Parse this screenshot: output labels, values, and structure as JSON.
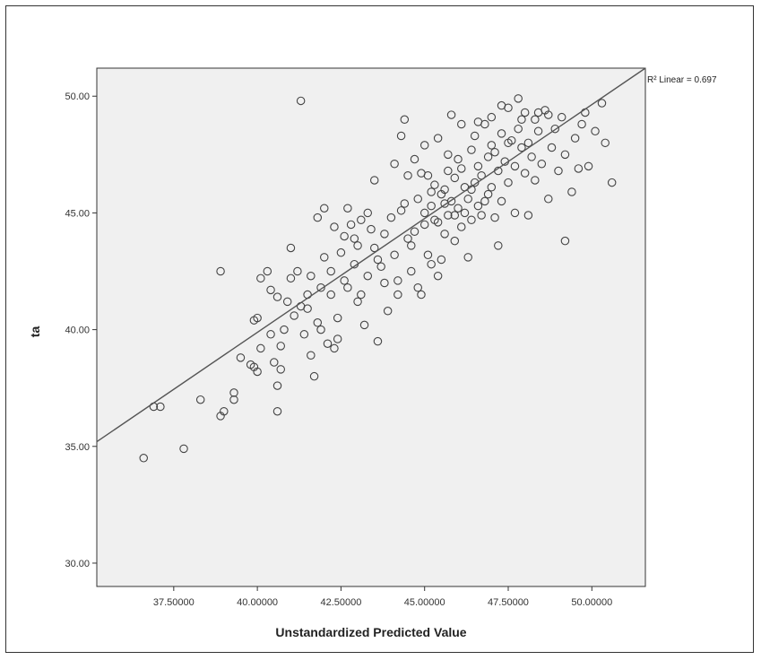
{
  "chart_data": {
    "type": "scatter",
    "title": "",
    "xlabel": "Unstandardized Predicted Value",
    "ylabel": "ta",
    "xlim": [
      35.2,
      51.6
    ],
    "ylim": [
      29.0,
      51.2
    ],
    "x_ticks": [
      37.5,
      40.0,
      42.5,
      45.0,
      47.5,
      50.0
    ],
    "x_tick_labels": [
      "37.50000",
      "40.00000",
      "42.50000",
      "45.00000",
      "47.50000",
      "50.00000"
    ],
    "y_ticks": [
      30,
      35,
      40,
      45,
      50
    ],
    "y_tick_labels": [
      "30.00",
      "35.00",
      "40.00",
      "45.00",
      "50.00"
    ],
    "grid": false,
    "annotation": "R² Linear = 0.697",
    "fit_line": {
      "type": "linear",
      "x": [
        35.2,
        51.6
      ],
      "y": [
        35.2,
        51.2
      ]
    },
    "colors": {
      "plot_bg": "#f0f0f0",
      "marker": "#444444",
      "line": "#555555"
    },
    "points": [
      [
        36.6,
        34.5
      ],
      [
        36.9,
        36.7
      ],
      [
        37.1,
        36.7
      ],
      [
        37.8,
        34.9
      ],
      [
        38.3,
        37.0
      ],
      [
        38.9,
        36.3
      ],
      [
        39.0,
        36.5
      ],
      [
        38.9,
        42.5
      ],
      [
        39.3,
        37.3
      ],
      [
        39.3,
        37.0
      ],
      [
        39.5,
        38.8
      ],
      [
        39.8,
        38.5
      ],
      [
        39.9,
        38.4
      ],
      [
        40.0,
        38.2
      ],
      [
        40.0,
        40.5
      ],
      [
        40.1,
        39.2
      ],
      [
        40.1,
        42.2
      ],
      [
        40.3,
        42.5
      ],
      [
        40.4,
        39.8
      ],
      [
        40.5,
        38.6
      ],
      [
        40.6,
        41.4
      ],
      [
        40.6,
        36.5
      ],
      [
        40.6,
        37.6
      ],
      [
        40.7,
        38.3
      ],
      [
        40.7,
        39.3
      ],
      [
        40.8,
        40.0
      ],
      [
        40.9,
        41.2
      ],
      [
        41.0,
        43.5
      ],
      [
        41.1,
        40.6
      ],
      [
        41.2,
        42.5
      ],
      [
        41.3,
        41.0
      ],
      [
        41.3,
        49.8
      ],
      [
        41.4,
        39.8
      ],
      [
        41.5,
        41.5
      ],
      [
        41.6,
        42.3
      ],
      [
        41.6,
        38.9
      ],
      [
        41.7,
        38.0
      ],
      [
        41.8,
        40.3
      ],
      [
        41.9,
        41.8
      ],
      [
        41.8,
        44.8
      ],
      [
        42.0,
        43.1
      ],
      [
        42.0,
        45.2
      ],
      [
        42.1,
        39.4
      ],
      [
        42.2,
        41.5
      ],
      [
        42.3,
        39.2
      ],
      [
        42.3,
        44.4
      ],
      [
        42.4,
        40.5
      ],
      [
        42.5,
        43.3
      ],
      [
        42.6,
        44.0
      ],
      [
        42.7,
        41.8
      ],
      [
        42.8,
        44.5
      ],
      [
        42.9,
        42.8
      ],
      [
        43.0,
        43.6
      ],
      [
        43.1,
        41.5
      ],
      [
        43.2,
        40.2
      ],
      [
        43.3,
        42.3
      ],
      [
        43.4,
        44.3
      ],
      [
        43.5,
        46.4
      ],
      [
        43.5,
        43.5
      ],
      [
        43.6,
        39.5
      ],
      [
        43.7,
        42.7
      ],
      [
        43.8,
        44.1
      ],
      [
        43.9,
        40.8
      ],
      [
        44.0,
        44.8
      ],
      [
        44.1,
        43.2
      ],
      [
        44.1,
        47.1
      ],
      [
        44.2,
        42.1
      ],
      [
        44.3,
        45.1
      ],
      [
        44.3,
        48.3
      ],
      [
        44.4,
        49.0
      ],
      [
        44.5,
        43.9
      ],
      [
        44.5,
        46.6
      ],
      [
        44.6,
        42.5
      ],
      [
        44.7,
        47.3
      ],
      [
        44.8,
        45.6
      ],
      [
        44.8,
        41.8
      ],
      [
        44.9,
        46.7
      ],
      [
        45.0,
        44.5
      ],
      [
        45.0,
        47.9
      ],
      [
        45.1,
        43.2
      ],
      [
        45.2,
        45.3
      ],
      [
        45.2,
        42.8
      ],
      [
        45.3,
        46.2
      ],
      [
        45.4,
        44.6
      ],
      [
        45.4,
        48.2
      ],
      [
        45.5,
        45.8
      ],
      [
        45.5,
        43.0
      ],
      [
        45.6,
        46.0
      ],
      [
        45.6,
        44.1
      ],
      [
        45.7,
        47.5
      ],
      [
        45.7,
        44.9
      ],
      [
        45.8,
        45.5
      ],
      [
        45.8,
        49.2
      ],
      [
        45.9,
        46.5
      ],
      [
        45.9,
        43.8
      ],
      [
        46.0,
        45.2
      ],
      [
        46.0,
        47.3
      ],
      [
        46.1,
        44.4
      ],
      [
        46.1,
        48.8
      ],
      [
        46.2,
        46.1
      ],
      [
        46.3,
        45.6
      ],
      [
        46.3,
        43.1
      ],
      [
        46.4,
        47.7
      ],
      [
        46.4,
        44.7
      ],
      [
        46.5,
        46.3
      ],
      [
        46.5,
        48.3
      ],
      [
        46.6,
        45.3
      ],
      [
        46.6,
        47.0
      ],
      [
        46.7,
        44.9
      ],
      [
        46.7,
        46.6
      ],
      [
        46.8,
        48.8
      ],
      [
        46.9,
        45.8
      ],
      [
        46.9,
        47.4
      ],
      [
        47.0,
        46.1
      ],
      [
        47.0,
        49.1
      ],
      [
        47.1,
        44.8
      ],
      [
        47.1,
        47.6
      ],
      [
        47.2,
        46.8
      ],
      [
        47.2,
        43.6
      ],
      [
        47.3,
        48.4
      ],
      [
        47.3,
        45.5
      ],
      [
        47.4,
        47.2
      ],
      [
        47.5,
        49.5
      ],
      [
        47.5,
        46.3
      ],
      [
        47.6,
        48.1
      ],
      [
        47.7,
        47.0
      ],
      [
        47.7,
        45.0
      ],
      [
        47.8,
        49.9
      ],
      [
        47.8,
        48.6
      ],
      [
        47.9,
        47.8
      ],
      [
        48.0,
        46.7
      ],
      [
        48.0,
        49.3
      ],
      [
        48.1,
        48.0
      ],
      [
        48.1,
        44.9
      ],
      [
        48.2,
        47.4
      ],
      [
        48.3,
        49.0
      ],
      [
        48.3,
        46.4
      ],
      [
        48.4,
        48.5
      ],
      [
        48.5,
        47.1
      ],
      [
        48.6,
        49.4
      ],
      [
        48.7,
        45.6
      ],
      [
        48.8,
        47.8
      ],
      [
        48.9,
        48.6
      ],
      [
        49.0,
        46.8
      ],
      [
        49.1,
        49.1
      ],
      [
        49.2,
        43.8
      ],
      [
        49.2,
        47.5
      ],
      [
        49.4,
        45.9
      ],
      [
        49.5,
        48.2
      ],
      [
        49.6,
        46.9
      ],
      [
        49.8,
        49.3
      ],
      [
        49.9,
        47.0
      ],
      [
        50.1,
        48.5
      ],
      [
        50.3,
        49.7
      ],
      [
        50.4,
        48.0
      ],
      [
        50.6,
        46.3
      ],
      [
        45.0,
        45.0
      ],
      [
        45.3,
        44.7
      ],
      [
        45.6,
        45.4
      ],
      [
        45.2,
        45.9
      ],
      [
        44.7,
        44.2
      ],
      [
        45.9,
        44.9
      ],
      [
        46.2,
        45.0
      ],
      [
        44.4,
        45.4
      ],
      [
        45.1,
        46.6
      ],
      [
        46.4,
        46.0
      ],
      [
        45.7,
        46.8
      ],
      [
        46.8,
        45.5
      ],
      [
        47.0,
        47.9
      ],
      [
        46.1,
        46.9
      ],
      [
        47.5,
        48.0
      ],
      [
        47.9,
        49.0
      ],
      [
        48.4,
        49.3
      ],
      [
        47.3,
        49.6
      ],
      [
        46.6,
        48.9
      ],
      [
        43.1,
        44.7
      ],
      [
        42.9,
        43.9
      ],
      [
        43.6,
        43.0
      ],
      [
        42.6,
        42.1
      ],
      [
        42.2,
        42.5
      ],
      [
        41.9,
        40.0
      ],
      [
        41.5,
        40.9
      ],
      [
        42.4,
        39.6
      ],
      [
        43.0,
        41.2
      ],
      [
        43.8,
        42.0
      ],
      [
        44.2,
        41.5
      ],
      [
        44.6,
        43.6
      ],
      [
        43.3,
        45.0
      ],
      [
        42.7,
        45.2
      ],
      [
        41.0,
        42.2
      ],
      [
        40.4,
        41.7
      ],
      [
        39.9,
        40.4
      ],
      [
        44.9,
        41.5
      ],
      [
        45.4,
        42.3
      ],
      [
        48.7,
        49.2
      ],
      [
        49.7,
        48.8
      ]
    ]
  }
}
